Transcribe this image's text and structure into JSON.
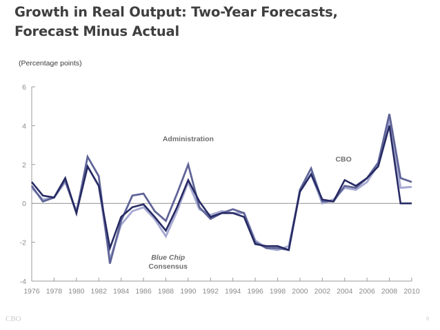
{
  "title": "Growth in Real Output: Two-Year Forecasts, Forecast Minus Actual",
  "title_line1": "Growth in Real Output: Two-Year Forecasts,",
  "title_line2": "Forecast Minus Actual",
  "subtitle": "(Percentage points)",
  "footer": {
    "source": "CBO",
    "page": "8"
  },
  "chart_data": {
    "type": "line",
    "title": "Growth in Real Output: Two-Year Forecasts, Forecast Minus Actual",
    "ylabel": "(Percentage points)",
    "xlabel": "",
    "x": [
      1976,
      1977,
      1978,
      1979,
      1980,
      1981,
      1982,
      1983,
      1984,
      1985,
      1986,
      1987,
      1988,
      1989,
      1990,
      1991,
      1992,
      1993,
      1994,
      1995,
      1996,
      1997,
      1998,
      1999,
      2000,
      2001,
      2002,
      2003,
      2004,
      2005,
      2006,
      2007,
      2008,
      2009,
      2010
    ],
    "xlim": [
      1976,
      2010
    ],
    "ylim": [
      -4,
      6
    ],
    "x_ticks": [
      "1976",
      "1978",
      "1980",
      "1982",
      "1984",
      "1986",
      "1988",
      "1990",
      "1992",
      "1994",
      "1996",
      "1998",
      "2000",
      "2002",
      "2004",
      "2006",
      "2008",
      "2010"
    ],
    "y_ticks": [
      "6",
      "4",
      "2",
      "0",
      "-2",
      "-4"
    ],
    "y_tick_values": [
      6,
      4,
      2,
      0,
      -2,
      -4
    ],
    "zero_line": true,
    "grid": false,
    "series": [
      {
        "name": "Blue Chip Consensus",
        "label_line1": "Blue Chip",
        "label_line2": "Consensus",
        "color": "#a7abd2",
        "values": [
          0.8,
          0.2,
          0.3,
          1.1,
          -0.4,
          1.9,
          0.9,
          -2.9,
          -1.1,
          -0.4,
          -0.2,
          -0.8,
          -1.7,
          -0.4,
          1.1,
          -0.3,
          -0.6,
          -0.4,
          -0.5,
          -0.5,
          -1.9,
          -2.3,
          -2.4,
          -2.2,
          0.6,
          1.5,
          0.0,
          0.2,
          0.8,
          0.7,
          1.1,
          2.0,
          4.3,
          0.8,
          0.85
        ]
      },
      {
        "name": "Administration",
        "label_line1": "Administration",
        "color": "#5f6497",
        "values": [
          0.9,
          0.1,
          0.3,
          1.2,
          -0.5,
          2.4,
          1.4,
          -3.1,
          -0.9,
          0.4,
          0.5,
          -0.4,
          -0.9,
          0.5,
          2.0,
          -0.2,
          -0.8,
          -0.5,
          -0.3,
          -0.5,
          -2.0,
          -2.3,
          -2.3,
          -2.4,
          0.7,
          1.8,
          0.1,
          0.1,
          0.9,
          0.8,
          1.3,
          2.1,
          4.6,
          1.3,
          1.1
        ]
      },
      {
        "name": "CBO",
        "label_line1": "CBO",
        "color": "#262a63",
        "values": [
          1.1,
          0.4,
          0.3,
          1.3,
          -0.5,
          1.9,
          0.9,
          -2.3,
          -0.7,
          -0.2,
          -0.05,
          -0.7,
          -1.4,
          -0.2,
          1.2,
          0.1,
          -0.7,
          -0.5,
          -0.5,
          -0.7,
          -2.1,
          -2.2,
          -2.2,
          -2.4,
          0.6,
          1.5,
          0.2,
          0.1,
          1.2,
          0.9,
          1.3,
          1.9,
          4.0,
          0.0,
          0.0
        ]
      }
    ],
    "annotations": [
      {
        "text": "Administration",
        "series": "Administration",
        "near_x": 1990,
        "position": "above-peak"
      },
      {
        "text": "Blue Chip Consensus",
        "series": "Blue Chip Consensus",
        "near_x": 1988,
        "position": "below-trough"
      },
      {
        "text": "CBO",
        "series": "CBO",
        "near_x": 2003,
        "position": "above"
      }
    ],
    "legend": "none (inline labels)"
  }
}
